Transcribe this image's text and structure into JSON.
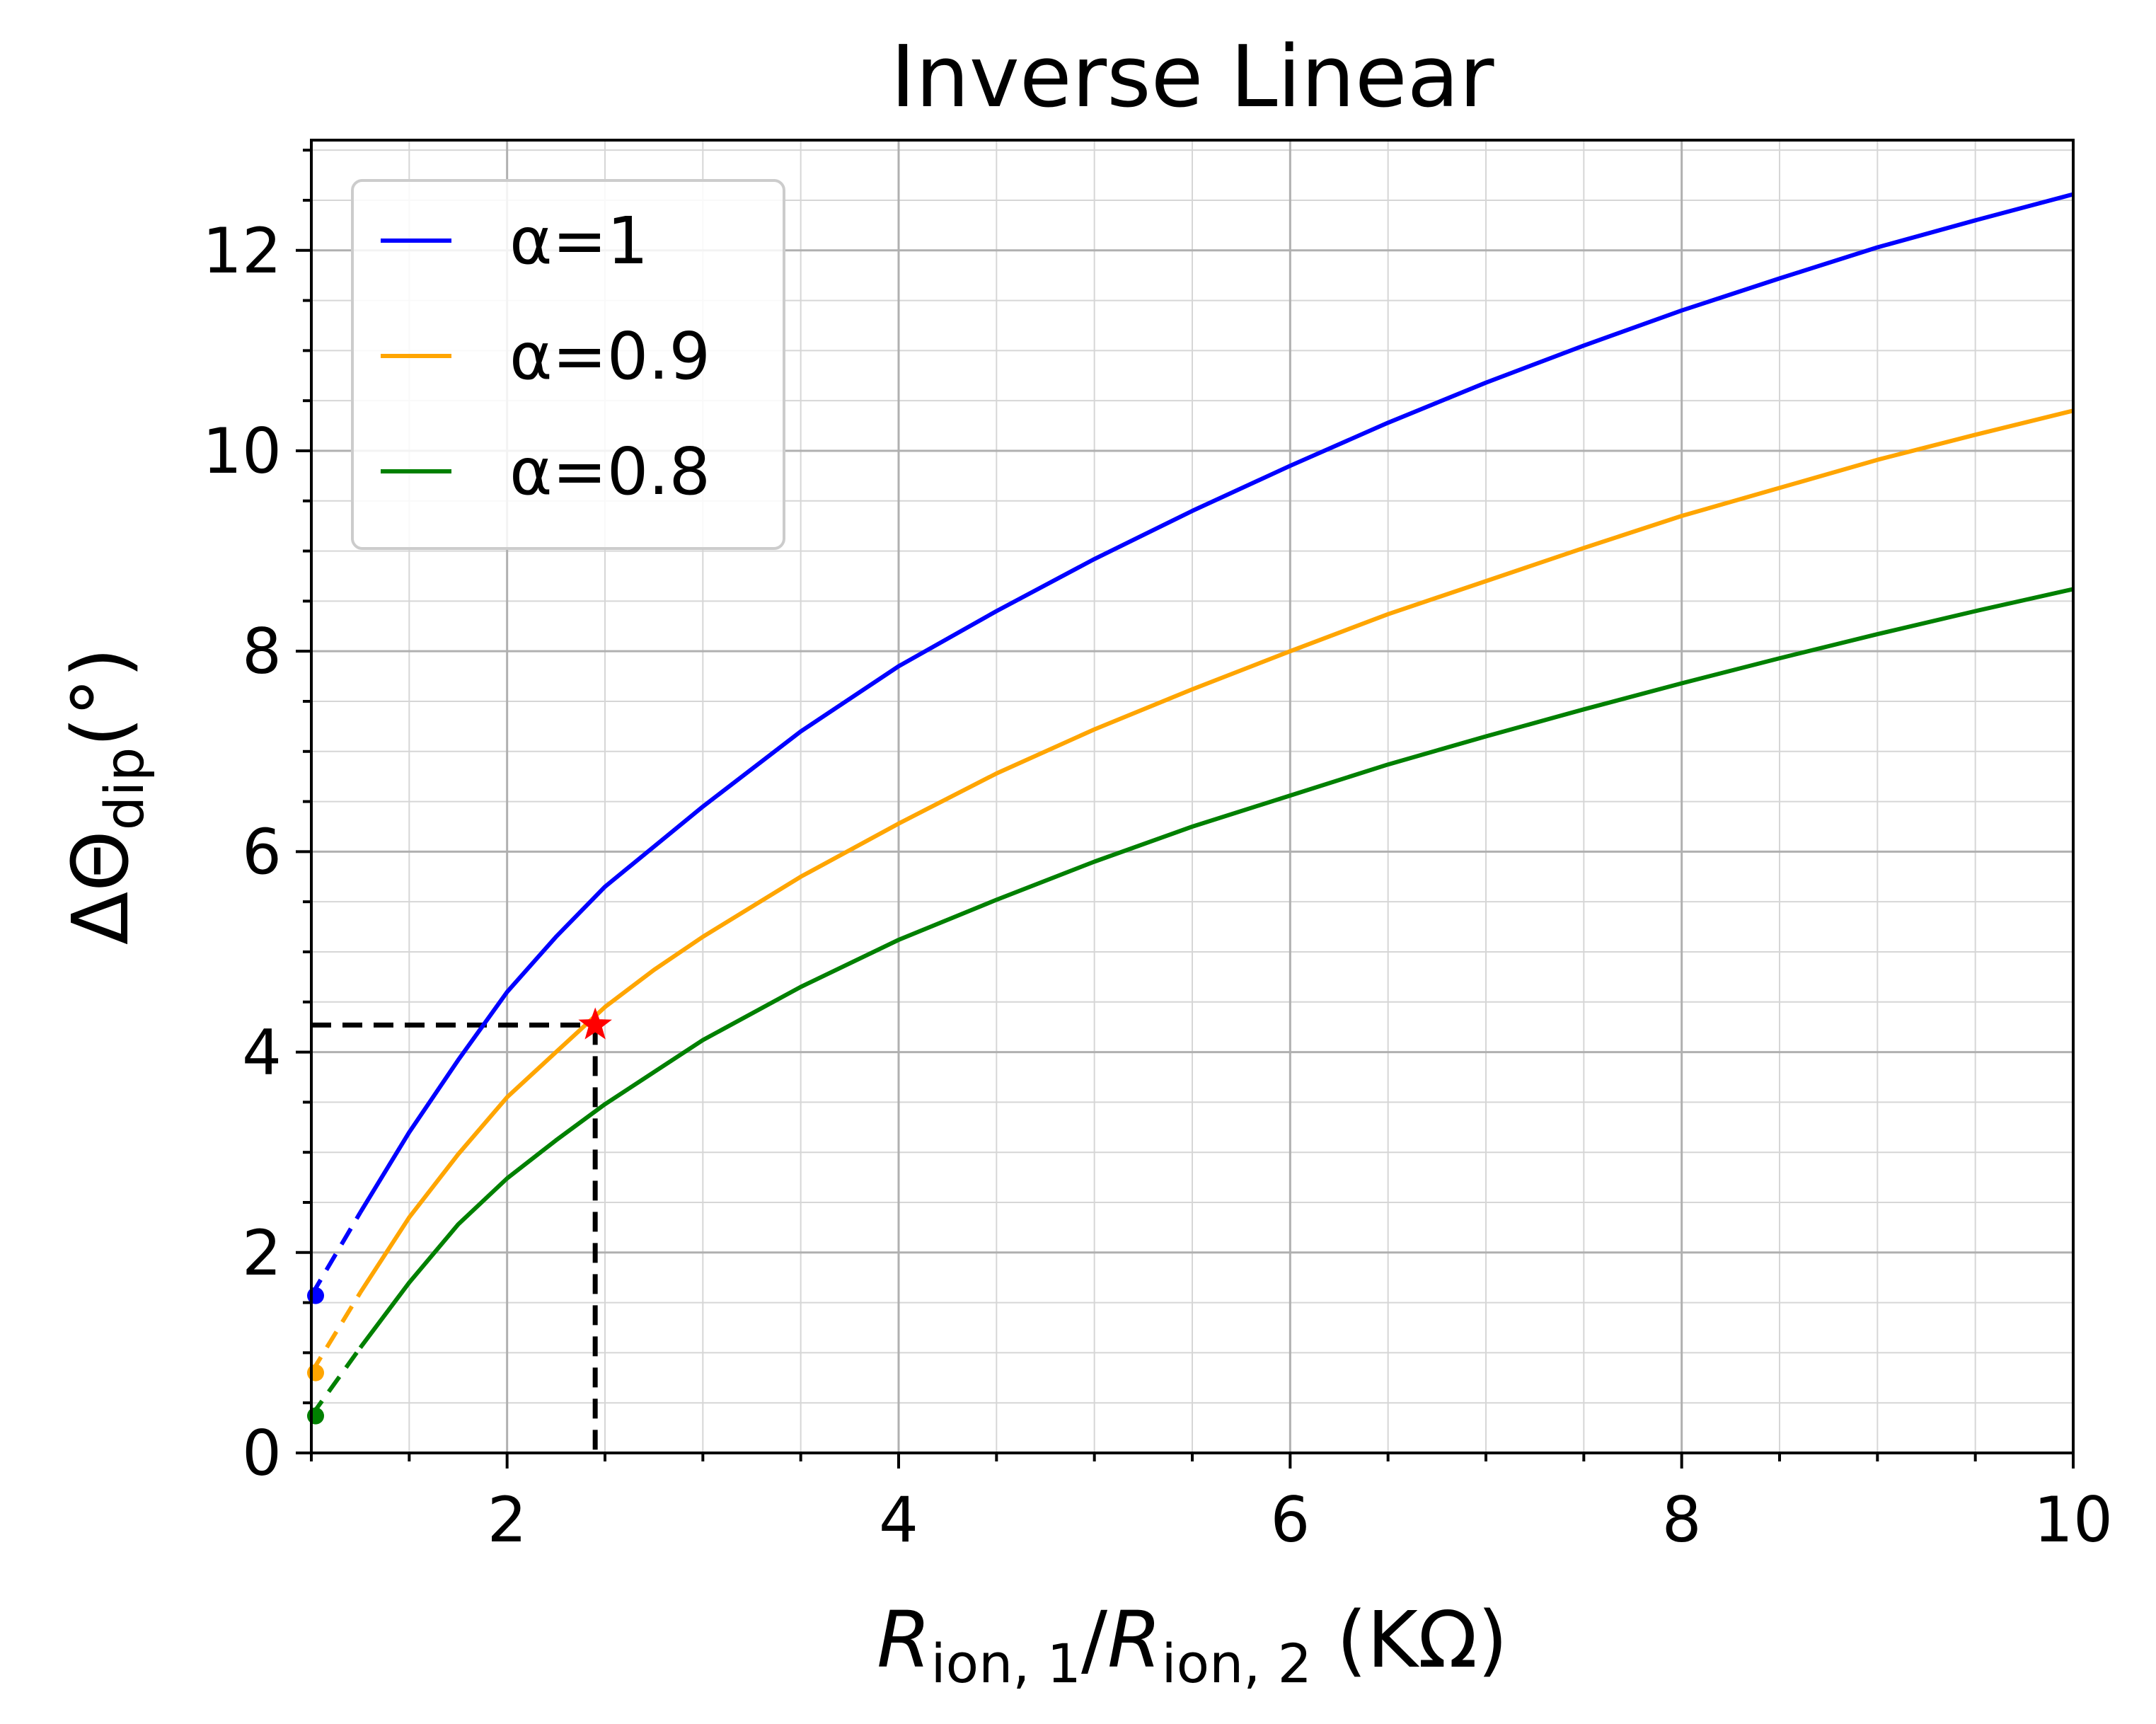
{
  "chart_data": {
    "type": "line",
    "title": "Inverse Linear",
    "xlabel": {
      "main": "R",
      "sub1": "ion, 1",
      "slash": "/",
      "main2": "R",
      "sub2": "ion, 2",
      "unit": " (KΩ)"
    },
    "ylabel": {
      "main": "ΔΘ",
      "sub": "dip",
      "unit": "(°)"
    },
    "xlim": [
      1,
      10
    ],
    "ylim": [
      0,
      13.1
    ],
    "xticks": [
      2,
      4,
      6,
      8,
      10
    ],
    "yticks": [
      0,
      2,
      4,
      6,
      8,
      10,
      12
    ],
    "x_minor_step": 0.5,
    "y_minor_step": 0.5,
    "grid": true,
    "legend_position": "top-left",
    "x": [
      1.0,
      1.25,
      1.5,
      1.75,
      2.0,
      2.25,
      2.5,
      2.75,
      3.0,
      3.5,
      4.0,
      4.5,
      5.0,
      5.5,
      6.0,
      6.5,
      7.0,
      7.5,
      8.0,
      8.5,
      9.0,
      9.5,
      10.0
    ],
    "dashed_until_x": 1.25,
    "series": [
      {
        "name": "α=1",
        "color": "#0000ff",
        "values": [
          1.57,
          2.4,
          3.2,
          3.92,
          4.6,
          5.15,
          5.65,
          6.05,
          6.45,
          7.2,
          7.85,
          8.4,
          8.92,
          9.4,
          9.85,
          10.28,
          10.68,
          11.05,
          11.4,
          11.72,
          12.03,
          12.3,
          12.56
        ]
      },
      {
        "name": "α=0.9",
        "color": "#ffa500",
        "values": [
          0.8,
          1.6,
          2.35,
          2.98,
          3.55,
          4.0,
          4.45,
          4.82,
          5.15,
          5.75,
          6.28,
          6.78,
          7.22,
          7.62,
          8.0,
          8.37,
          8.7,
          9.03,
          9.35,
          9.63,
          9.91,
          10.16,
          10.4
        ]
      },
      {
        "name": "α=0.8",
        "color": "#008000",
        "values": [
          0.37,
          1.05,
          1.7,
          2.28,
          2.74,
          3.12,
          3.48,
          3.8,
          4.12,
          4.65,
          5.12,
          5.52,
          5.9,
          6.25,
          6.56,
          6.87,
          7.15,
          7.42,
          7.68,
          7.93,
          8.17,
          8.4,
          8.62
        ]
      }
    ],
    "marker": {
      "x": 2.45,
      "y": 4.27,
      "color": "#ff0000",
      "shape": "star",
      "guide_lines": "dashed"
    }
  }
}
